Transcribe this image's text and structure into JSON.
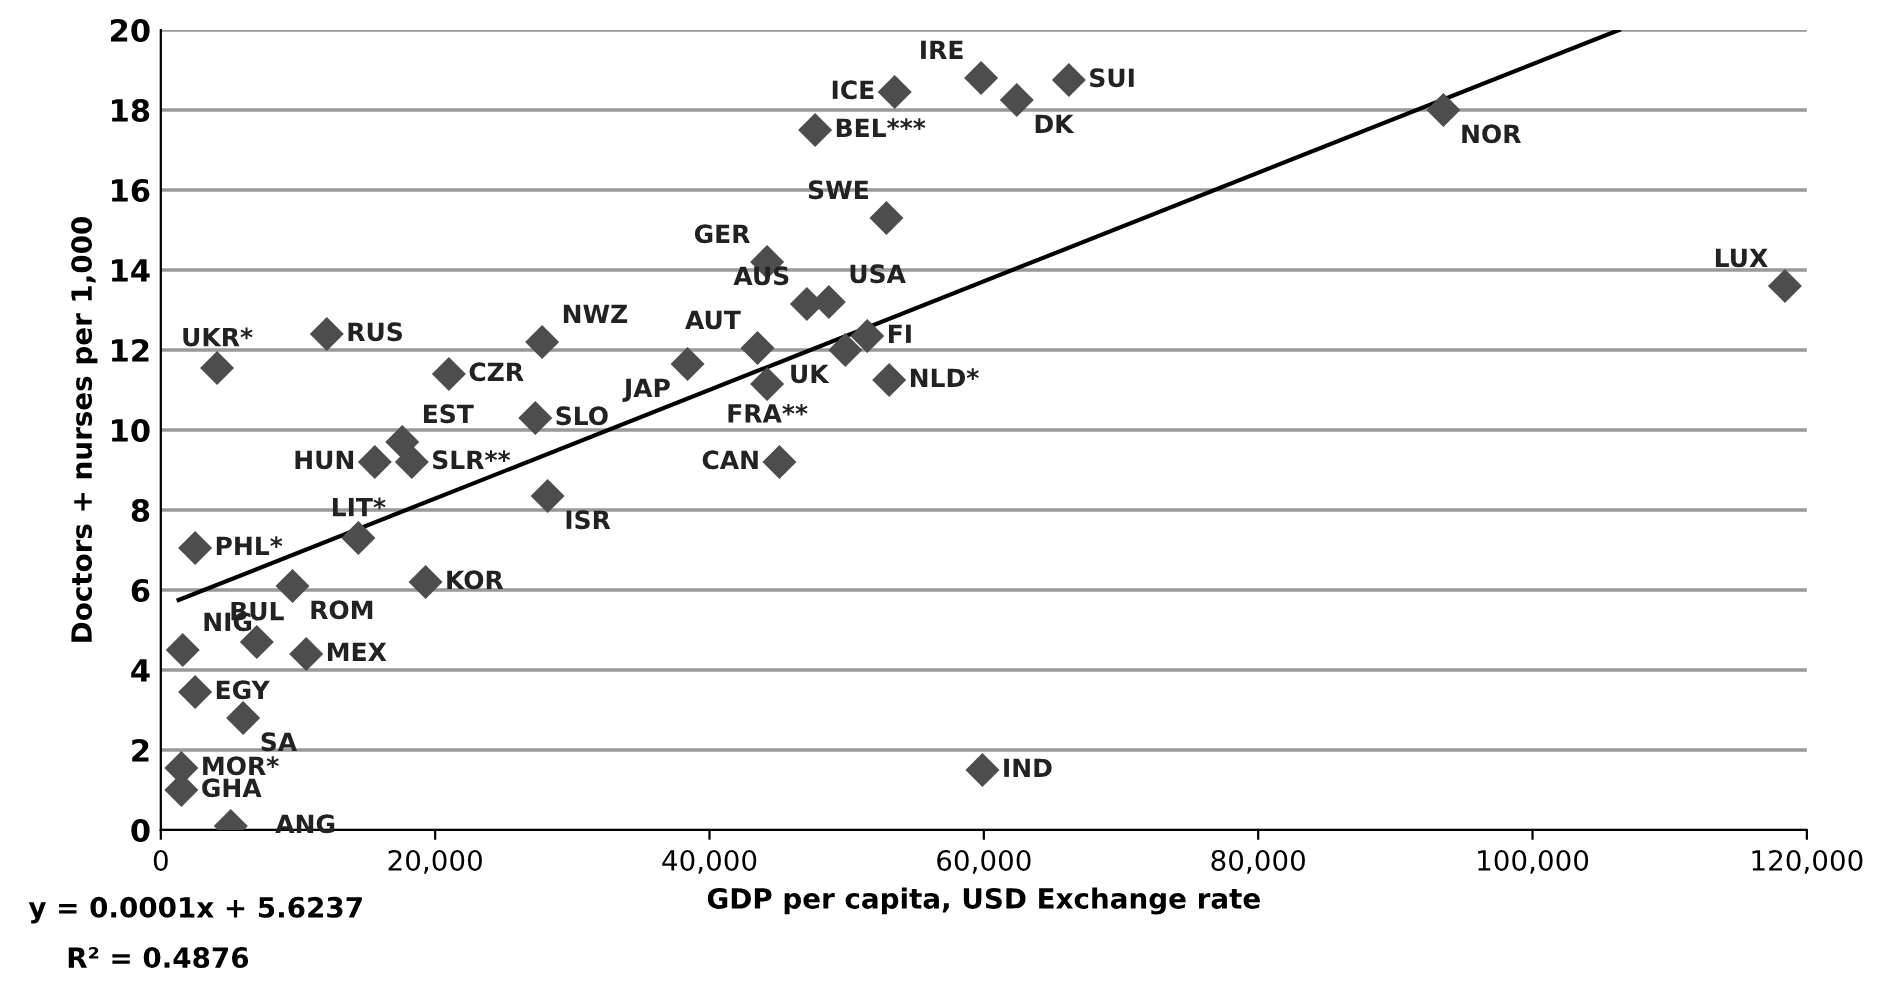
{
  "chart_data": {
    "type": "scatter",
    "xlabel": "GDP per capita, USD Exchange rate",
    "ylabel": "Doctors + nurses per 1,000",
    "xlim": [
      0,
      120000
    ],
    "ylim": [
      0,
      20
    ],
    "xticks": [
      {
        "value": 0,
        "label": "0"
      },
      {
        "value": 20000,
        "label": "20,000"
      },
      {
        "value": 40000,
        "label": "40,000"
      },
      {
        "value": 60000,
        "label": "60,000"
      },
      {
        "value": 80000,
        "label": "80,000"
      },
      {
        "value": 100000,
        "label": "100,000"
      },
      {
        "value": 120000,
        "label": "120,000"
      }
    ],
    "yticks": [
      0,
      2,
      4,
      6,
      8,
      10,
      12,
      14,
      16,
      18,
      20
    ],
    "grid": "y",
    "series": [
      {
        "type": "scatter",
        "marker": "diamond",
        "color": "#4d4d4d",
        "x": [
          4100,
          12100,
          21000,
          27800,
          27300,
          17600,
          15600,
          18300,
          28200,
          14400,
          2500,
          9600,
          19300,
          1600,
          7000,
          10600,
          2500,
          6000,
          1500,
          1500,
          5100,
          59900,
          45100,
          38400,
          43500,
          47100,
          48700,
          49900,
          51500,
          44200,
          53100,
          44200,
          52900,
          47700,
          53500,
          59800,
          62400,
          66200,
          93500,
          118400
        ],
        "values": [
          11.55,
          12.4,
          11.4,
          12.2,
          10.3,
          9.7,
          9.2,
          9.2,
          8.35,
          7.3,
          7.05,
          6.1,
          6.2,
          4.5,
          4.7,
          4.4,
          3.45,
          2.8,
          1.55,
          1.0,
          0.1,
          1.5,
          9.2,
          11.65,
          12.05,
          13.15,
          13.2,
          12.0,
          12.35,
          11.15,
          11.25,
          14.2,
          15.3,
          17.5,
          18.45,
          18.8,
          18.25,
          18.75,
          18.0,
          13.6
        ],
        "value_labels": [
          "UKR*",
          "RUS",
          "CZR",
          "NWZ",
          "SLO",
          "EST",
          "HUN",
          "SLR**",
          "ISR",
          "LIT*",
          "PHL*",
          "ROM",
          "KOR",
          "NIG",
          "BUL",
          "MEX",
          "EGY",
          "SA",
          "MOR*",
          "GHA",
          "ANG",
          "IND",
          "CAN",
          "JAP",
          "AUT",
          "AUS",
          "USA",
          "UK",
          "FI",
          "FRA**",
          "NLD*",
          "GER",
          "SWE",
          "BEL***",
          "ICE",
          "IRE",
          "DK",
          "SUI",
          "NOR",
          "LUX"
        ]
      },
      {
        "type": "line",
        "color": "#000000",
        "x": [
          1300,
          106300
        ],
        "values": [
          5.75,
          20
        ]
      }
    ],
    "annotations": [
      "y = 0.0001x + 5.6237",
      "R² = 0.4876"
    ]
  }
}
